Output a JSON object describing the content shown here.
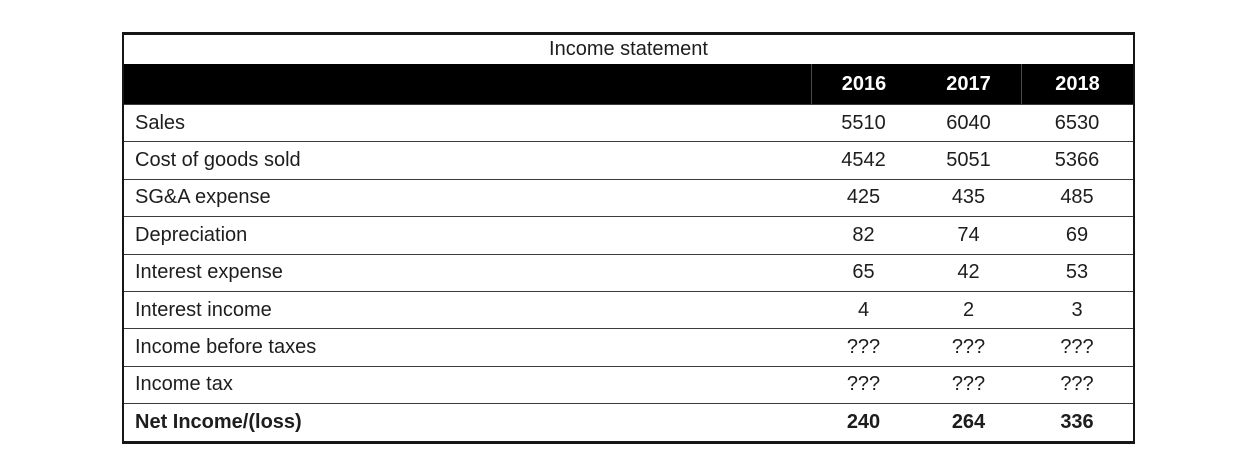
{
  "table": {
    "title": "Income statement",
    "years": [
      "2016",
      "2017",
      "2018"
    ],
    "rows": [
      {
        "label": "Sales",
        "values": [
          "5510",
          "6040",
          "6530"
        ]
      },
      {
        "label": "Cost of goods sold",
        "values": [
          "4542",
          "5051",
          "5366"
        ]
      },
      {
        "label": "SG&A expense",
        "values": [
          "425",
          "435",
          "485"
        ]
      },
      {
        "label": "Depreciation",
        "values": [
          "82",
          "74",
          "69"
        ]
      },
      {
        "label": "Interest expense",
        "values": [
          "65",
          "42",
          "53"
        ]
      },
      {
        "label": "Interest income",
        "values": [
          "4",
          "2",
          "3"
        ]
      },
      {
        "label": "Income before taxes",
        "values": [
          "???",
          "???",
          "???"
        ]
      },
      {
        "label": "Income tax",
        "values": [
          "???",
          "???",
          "???"
        ]
      },
      {
        "label": "Net Income/(loss)",
        "values": [
          "240",
          "264",
          "336"
        ]
      }
    ],
    "colors": {
      "header_bg": "#000000",
      "header_text": "#ffffff",
      "body_text": "#1d1d1d",
      "border": "#161616"
    }
  }
}
